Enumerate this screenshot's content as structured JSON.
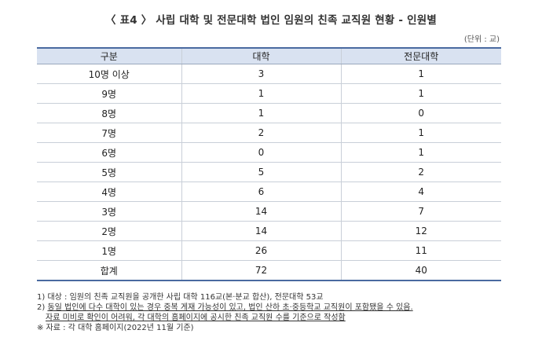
{
  "title": "〈 표4 〉 사립 대학 및 전문대학 법인 임원의 친족 교직원 현황 - 인원별",
  "unit": "(단위 : 교)",
  "table": {
    "headers": [
      "구분",
      "대학",
      "전문대학"
    ],
    "rows": [
      [
        "10명 이상",
        "3",
        "1"
      ],
      [
        "9명",
        "1",
        "1"
      ],
      [
        "8명",
        "1",
        "0"
      ],
      [
        "7명",
        "2",
        "1"
      ],
      [
        "6명",
        "0",
        "1"
      ],
      [
        "5명",
        "5",
        "2"
      ],
      [
        "4명",
        "6",
        "4"
      ],
      [
        "3명",
        "14",
        "7"
      ],
      [
        "2명",
        "14",
        "12"
      ],
      [
        "1명",
        "26",
        "11"
      ],
      [
        "합계",
        "72",
        "40"
      ]
    ]
  },
  "notes": {
    "n1": "1) 대상 : 임원의 친족 교직원을 공개한 사립 대학 116교(본·분교 합산), 전문대학 53교",
    "n2_prefix": "2) ",
    "n2a": "동일 법인에 다수 대학이 있는 경우 중복 게재 가능성이 있고, 법인 산하 초·중등학교 교직원이 포함됐을 수 있음.",
    "n2b": "자료 미비로 확인이 어려워, 각 대학의 홈페이지에 공시한 친족 교직원 수를 기준으로 작성함",
    "n3": "※ 자료 : 각 대학 홈페이지(2022년 11월 기준)"
  }
}
